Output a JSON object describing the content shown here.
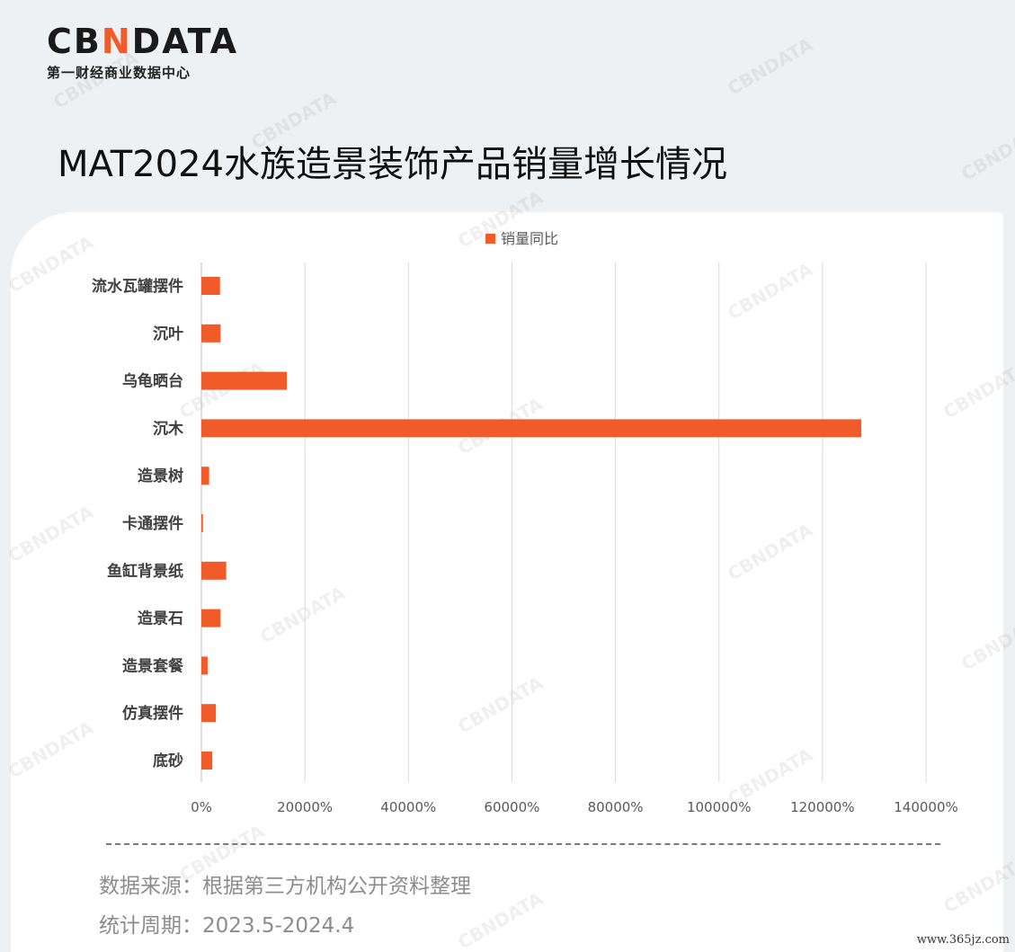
{
  "logo": {
    "brand_left": "CB",
    "brand_mark": "N",
    "brand_right": "DATA",
    "subtitle": "第一财经商业数据中心"
  },
  "title": "MAT2024水族造景装饰产品销量增长情况",
  "watermark": "CBNDATA",
  "chart_data": {
    "type": "bar",
    "orientation": "horizontal",
    "categories": [
      "流水瓦罐摆件",
      "沉叶",
      "乌龟晒台",
      "沉木",
      "造景树",
      "卡通摆件",
      "鱼缸背景纸",
      "造景石",
      "造景套餐",
      "仿真摆件",
      "底砂"
    ],
    "series": [
      {
        "name": "销量同比",
        "values": [
          3600,
          3700,
          16500,
          127500,
          1500,
          300,
          4800,
          3700,
          1200,
          2800,
          2100
        ],
        "color": "#f15a29"
      }
    ],
    "xlim": [
      0,
      140000
    ],
    "xticks": [
      0,
      20000,
      40000,
      60000,
      80000,
      100000,
      120000,
      140000
    ],
    "tick_labels": [
      "0%",
      "20000%",
      "40000%",
      "60000%",
      "80000%",
      "100000%",
      "120000%",
      "140000%"
    ],
    "grid": "vertical",
    "legend": "top-center"
  },
  "footer": {
    "source": "数据来源：根据第三方机构公开资料整理",
    "period": "统计周期：2023.5-2024.4"
  },
  "site_url": "www.365jz.com"
}
